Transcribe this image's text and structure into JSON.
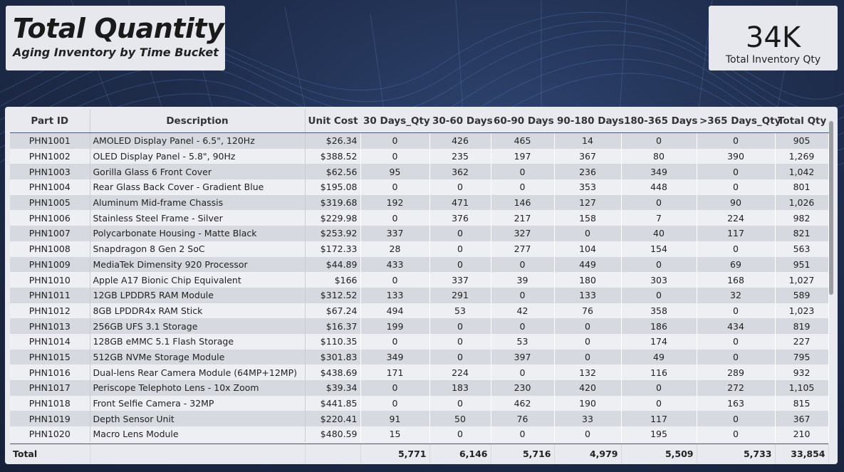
{
  "header": {
    "title": "Total Quantity",
    "subtitle": "Aging Inventory by Time Bucket"
  },
  "kpi": {
    "value": "34K",
    "label": "Total Inventory Qty"
  },
  "table": {
    "columns": [
      "Part ID",
      "Description",
      "Unit Cost",
      "30 Days_Qty",
      "30-60 Days",
      "60-90 Days",
      "90-180 Days",
      "180-365 Days",
      ">365 Days_Qty",
      "Total Qty"
    ],
    "rows": [
      [
        "PHN1001",
        "AMOLED Display Panel - 6.5\", 120Hz",
        "$26.34",
        "0",
        "426",
        "465",
        "14",
        "0",
        "0",
        "905"
      ],
      [
        "PHN1002",
        "OLED Display Panel - 5.8\", 90Hz",
        "$388.52",
        "0",
        "235",
        "197",
        "367",
        "80",
        "390",
        "1,269"
      ],
      [
        "PHN1003",
        "Gorilla Glass 6 Front Cover",
        "$62.56",
        "95",
        "362",
        "0",
        "236",
        "349",
        "0",
        "1,042"
      ],
      [
        "PHN1004",
        "Rear Glass Back Cover - Gradient Blue",
        "$195.08",
        "0",
        "0",
        "0",
        "353",
        "448",
        "0",
        "801"
      ],
      [
        "PHN1005",
        "Aluminum Mid-frame Chassis",
        "$319.68",
        "192",
        "471",
        "146",
        "127",
        "0",
        "90",
        "1,026"
      ],
      [
        "PHN1006",
        "Stainless Steel Frame - Silver",
        "$229.98",
        "0",
        "376",
        "217",
        "158",
        "7",
        "224",
        "982"
      ],
      [
        "PHN1007",
        "Polycarbonate Housing - Matte Black",
        "$253.92",
        "337",
        "0",
        "327",
        "0",
        "40",
        "117",
        "821"
      ],
      [
        "PHN1008",
        "Snapdragon 8 Gen 2 SoC",
        "$172.33",
        "28",
        "0",
        "277",
        "104",
        "154",
        "0",
        "563"
      ],
      [
        "PHN1009",
        "MediaTek Dimensity 920 Processor",
        "$44.89",
        "433",
        "0",
        "0",
        "449",
        "0",
        "69",
        "951"
      ],
      [
        "PHN1010",
        "Apple A17 Bionic Chip Equivalent",
        "$166",
        "0",
        "337",
        "39",
        "180",
        "303",
        "168",
        "1,027"
      ],
      [
        "PHN1011",
        "12GB LPDDR5 RAM Module",
        "$312.52",
        "133",
        "291",
        "0",
        "133",
        "0",
        "32",
        "589"
      ],
      [
        "PHN1012",
        "8GB LPDDR4x RAM Stick",
        "$67.24",
        "494",
        "53",
        "42",
        "76",
        "358",
        "0",
        "1,023"
      ],
      [
        "PHN1013",
        "256GB UFS 3.1 Storage",
        "$16.37",
        "199",
        "0",
        "0",
        "0",
        "186",
        "434",
        "819"
      ],
      [
        "PHN1014",
        "128GB eMMC 5.1 Flash Storage",
        "$110.35",
        "0",
        "0",
        "53",
        "0",
        "174",
        "0",
        "227"
      ],
      [
        "PHN1015",
        "512GB NVMe Storage Module",
        "$301.83",
        "349",
        "0",
        "397",
        "0",
        "49",
        "0",
        "795"
      ],
      [
        "PHN1016",
        "Dual-lens Rear Camera Module (64MP+12MP)",
        "$438.69",
        "171",
        "224",
        "0",
        "132",
        "116",
        "289",
        "932"
      ],
      [
        "PHN1017",
        "Periscope Telephoto Lens - 10x Zoom",
        "$39.34",
        "0",
        "183",
        "230",
        "420",
        "0",
        "272",
        "1,105"
      ],
      [
        "PHN1018",
        "Front Selfie Camera - 32MP",
        "$441.85",
        "0",
        "0",
        "462",
        "190",
        "0",
        "163",
        "815"
      ],
      [
        "PHN1019",
        "Depth Sensor Unit",
        "$220.41",
        "91",
        "50",
        "76",
        "33",
        "117",
        "0",
        "367"
      ],
      [
        "PHN1020",
        "Macro Lens Module",
        "$480.59",
        "15",
        "0",
        "0",
        "0",
        "195",
        "0",
        "210"
      ]
    ],
    "total": [
      "Total",
      "",
      "",
      "5,771",
      "6,146",
      "5,716",
      "4,979",
      "5,509",
      "5,733",
      "33,854"
    ]
  },
  "colors": {
    "background": "#1f2d4c",
    "card": "#e6e8ee",
    "row_odd": "#d6d9df",
    "row_even": "#eeeff2"
  }
}
